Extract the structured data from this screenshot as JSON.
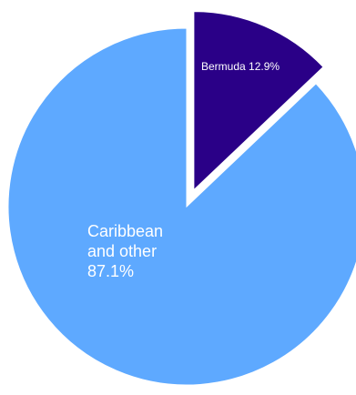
{
  "chart_data": {
    "type": "pie",
    "slices": [
      {
        "label_lines": [
          "Bermuda 12.9%"
        ],
        "value": 12.9,
        "color": "#2a0087",
        "exploded": true
      },
      {
        "label_lines": [
          "Caribbean",
          "and other",
          "87.1%"
        ],
        "value": 87.1,
        "color": "#5ea9ff",
        "exploded": false
      }
    ],
    "legend": "none",
    "grid": false
  }
}
